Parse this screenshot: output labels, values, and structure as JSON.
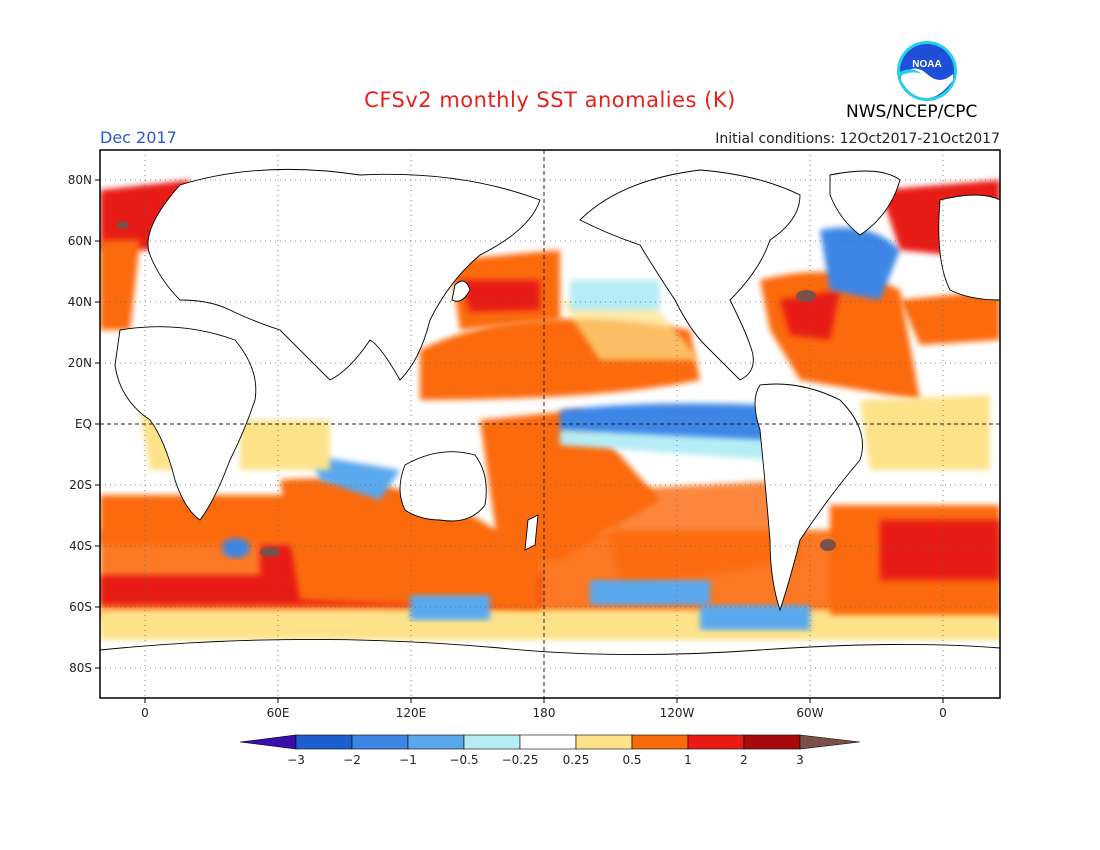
{
  "title": "CFSv2 monthly SST anomalies (K)",
  "month": "Dec 2017",
  "initial_conditions": "Initial conditions: 12Oct2017-21Oct2017",
  "agency": "NWS/NCEP/CPC",
  "logo_text": "NOAA",
  "map": {
    "lat_labels": [
      "80N",
      "60N",
      "40N",
      "20N",
      "EQ",
      "20S",
      "40S",
      "60S",
      "80S"
    ],
    "lon_labels": [
      "0",
      "60E",
      "120E",
      "180",
      "120W",
      "60W",
      "0"
    ],
    "grid": "dotted"
  },
  "colorbar": {
    "labels": [
      "-3",
      "-2",
      "-1",
      "-0.5",
      "-0.25",
      "0.25",
      "0.5",
      "1",
      "2",
      "3"
    ],
    "colors": [
      "#3a0ea8",
      "#1e5fd0",
      "#3d86e6",
      "#5aa8ee",
      "#b6ecf5",
      "#ffffff",
      "#fde28a",
      "#fb6a08",
      "#e81c12",
      "#a80a0a",
      "#7a5048"
    ]
  }
}
